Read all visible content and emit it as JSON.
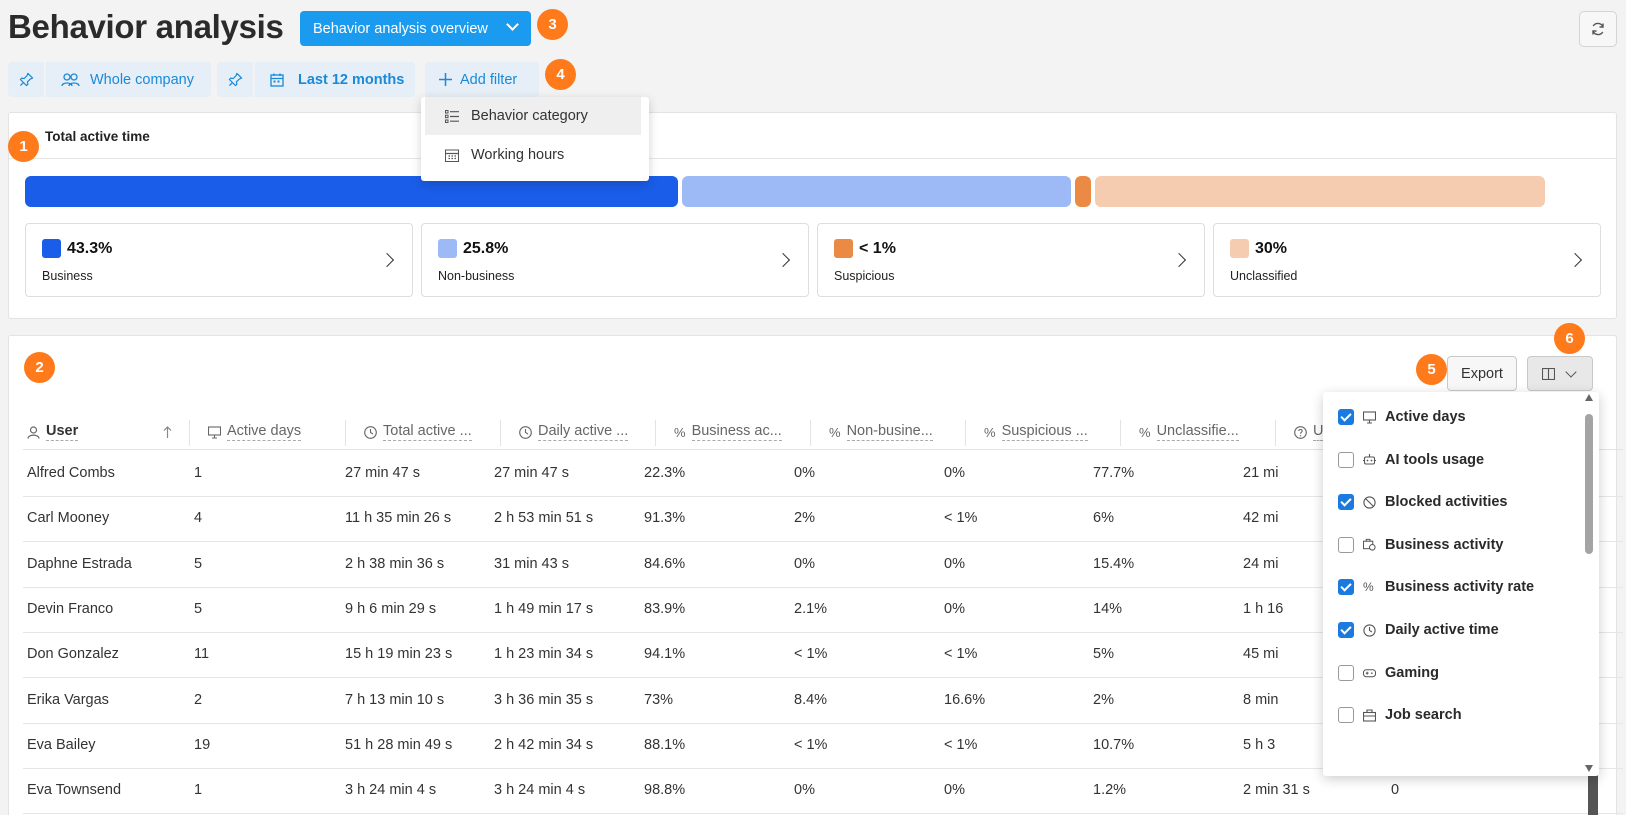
{
  "header": {
    "title": "Behavior analysis",
    "view_select": "Behavior analysis overview",
    "refresh_icon": "refresh-icon"
  },
  "badges": [
    "1",
    "2",
    "3",
    "4",
    "5",
    "6"
  ],
  "filters": {
    "scope_label": "Whole company",
    "period_label": "Last 12 months",
    "add_filter_label": "Add filter",
    "menu": [
      {
        "label": "Behavior category",
        "icon": "list-icon"
      },
      {
        "label": "Working hours",
        "icon": "calendar-icon"
      }
    ]
  },
  "summary": {
    "title": "Total active time",
    "colors": {
      "business": "#1a5de8",
      "non_business": "#9dbaf7",
      "suspicious": "#eb8a45",
      "unclassified": "#f6ccb0"
    },
    "categories": [
      {
        "pct": "43.3%",
        "label": "Business",
        "share": 43.3
      },
      {
        "pct": "25.8%",
        "label": "Non-business",
        "share": 25.8
      },
      {
        "pct": "< 1%",
        "label": "Suspicious",
        "share": 0.9
      },
      {
        "pct": "30%",
        "label": "Unclassified",
        "share": 30
      }
    ]
  },
  "table": {
    "export_label": "Export",
    "columns": [
      "User",
      "Active days",
      "Total active ...",
      "Daily active ...",
      "Business ac...",
      "Non-busine...",
      "Suspicious ...",
      "Unclassifie...",
      "U"
    ],
    "rows": [
      [
        "Alfred Combs",
        "1",
        "27 min 47 s",
        "27 min 47 s",
        "22.3%",
        "0%",
        "0%",
        "77.7%",
        "21 mi"
      ],
      [
        "Carl Mooney",
        "4",
        "11 h 35 min 26 s",
        "2 h 53 min 51 s",
        "91.3%",
        "2%",
        "< 1%",
        "6%",
        "42 mi"
      ],
      [
        "Daphne Estrada",
        "5",
        "2 h 38 min 36 s",
        "31 min 43 s",
        "84.6%",
        "0%",
        "0%",
        "15.4%",
        "24 mi"
      ],
      [
        "Devin Franco",
        "5",
        "9 h 6 min 29 s",
        "1 h 49 min 17 s",
        "83.9%",
        "2.1%",
        "0%",
        "14%",
        "1 h 16"
      ],
      [
        "Don Gonzalez",
        "11",
        "15 h 19 min 23 s",
        "1 h 23 min 34 s",
        "94.1%",
        "< 1%",
        "< 1%",
        "5%",
        "45 mi"
      ],
      [
        "Erika Vargas",
        "2",
        "7 h 13 min 10 s",
        "3 h 36 min 35 s",
        "73%",
        "8.4%",
        "16.6%",
        "2%",
        "8 min"
      ],
      [
        "Eva Bailey",
        "19",
        "51 h 28 min 49 s",
        "2 h 42 min 34 s",
        "88.1%",
        "< 1%",
        "< 1%",
        "10.7%",
        "5 h 3"
      ],
      [
        "Eva Townsend",
        "1",
        "3 h 24 min 4 s",
        "3 h 24 min 4 s",
        "98.8%",
        "0%",
        "0%",
        "1.2%",
        "2 min 31 s"
      ]
    ],
    "extra_cell": "0"
  },
  "column_picker": {
    "items": [
      {
        "label": "Active days",
        "checked": true,
        "icon": "monitor-icon"
      },
      {
        "label": "AI tools usage",
        "checked": false,
        "icon": "robot-icon"
      },
      {
        "label": "Blocked activities",
        "checked": true,
        "icon": "blocked-icon"
      },
      {
        "label": "Business activity",
        "checked": false,
        "icon": "briefcase-clock-icon"
      },
      {
        "label": "Business activity rate",
        "checked": true,
        "icon": "percent-icon"
      },
      {
        "label": "Daily active time",
        "checked": true,
        "icon": "clock-icon"
      },
      {
        "label": "Gaming",
        "checked": false,
        "icon": "gamepad-icon"
      },
      {
        "label": "Job search",
        "checked": false,
        "icon": "job-icon"
      }
    ]
  }
}
